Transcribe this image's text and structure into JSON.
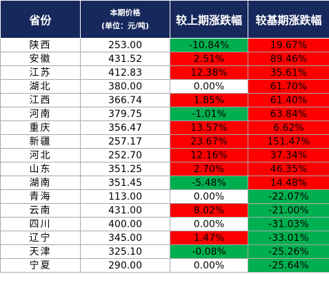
{
  "header": {
    "province": "省份",
    "price_line1": "本期价格",
    "price_line2": "(单位：元/吨)",
    "mom": "较上期涨跌幅",
    "yoy": "较基期涨跌幅"
  },
  "colors": {
    "header_bg": "#17285c",
    "up": "#ff0000",
    "down": "#00b050",
    "flat": "#ffffff"
  },
  "rows": [
    {
      "province": "陕西",
      "price": "253.00",
      "mom": "-10.84%",
      "mom_color": "green",
      "yoy": "19.67%",
      "yoy_color": "red"
    },
    {
      "province": "安徽",
      "price": "431.52",
      "mom": "2.51%",
      "mom_color": "red",
      "yoy": "89.46%",
      "yoy_color": "red"
    },
    {
      "province": "江苏",
      "price": "412.83",
      "mom": "12.38%",
      "mom_color": "red",
      "yoy": "35.61%",
      "yoy_color": "red"
    },
    {
      "province": "湖北",
      "price": "380.00",
      "mom": "0.00%",
      "mom_color": "white",
      "yoy": "61.70%",
      "yoy_color": "red"
    },
    {
      "province": "江西",
      "price": "366.74",
      "mom": "1.85%",
      "mom_color": "red",
      "yoy": "61.40%",
      "yoy_color": "red"
    },
    {
      "province": "河南",
      "price": "379.75",
      "mom": "-1.01%",
      "mom_color": "green",
      "yoy": "63.84%",
      "yoy_color": "red"
    },
    {
      "province": "重庆",
      "price": "356.47",
      "mom": "13.57%",
      "mom_color": "red",
      "yoy": "6.62%",
      "yoy_color": "red"
    },
    {
      "province": "新疆",
      "price": "257.17",
      "mom": "23.67%",
      "mom_color": "red",
      "yoy": "151.47%",
      "yoy_color": "red"
    },
    {
      "province": "河北",
      "price": "252.70",
      "mom": "12.16%",
      "mom_color": "red",
      "yoy": "37.34%",
      "yoy_color": "red"
    },
    {
      "province": "山东",
      "price": "351.25",
      "mom": "2.70%",
      "mom_color": "red",
      "yoy": "46.35%",
      "yoy_color": "red"
    },
    {
      "province": "湖南",
      "price": "351.45",
      "mom": "-5.48%",
      "mom_color": "green",
      "yoy": "14.48%",
      "yoy_color": "red"
    },
    {
      "province": "青海",
      "price": "113.00",
      "mom": "0.00%",
      "mom_color": "white",
      "yoy": "-22.07%",
      "yoy_color": "green"
    },
    {
      "province": "云南",
      "price": "431.00",
      "mom": "8.02%",
      "mom_color": "red",
      "yoy": "-21.00%",
      "yoy_color": "green"
    },
    {
      "province": "四川",
      "price": "400.00",
      "mom": "0.00%",
      "mom_color": "white",
      "yoy": "-31.03%",
      "yoy_color": "green"
    },
    {
      "province": "辽宁",
      "price": "345.00",
      "mom": "1.47%",
      "mom_color": "red",
      "yoy": "-33.01%",
      "yoy_color": "green"
    },
    {
      "province": "天津",
      "price": "325.10",
      "mom": "-0.08%",
      "mom_color": "green",
      "yoy": "-25.26%",
      "yoy_color": "green"
    },
    {
      "province": "宁夏",
      "price": "290.00",
      "mom": "0.00%",
      "mom_color": "white",
      "yoy": "-25.64%",
      "yoy_color": "green"
    }
  ]
}
